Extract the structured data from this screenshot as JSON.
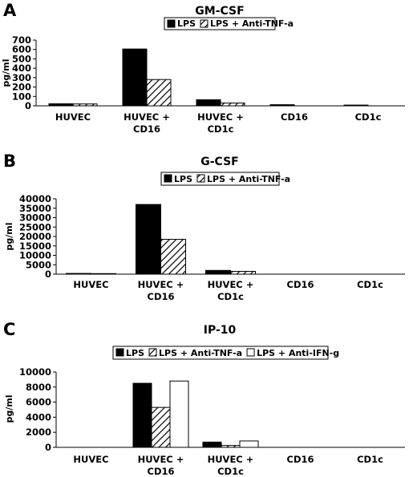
{
  "figure": {
    "panels": [
      {
        "letter": "A",
        "title": "GM-CSF"
      },
      {
        "letter": "B",
        "title": "G-CSF"
      },
      {
        "letter": "C",
        "title": "IP-10"
      }
    ]
  },
  "chart_data": [
    {
      "type": "bar",
      "title": "GM-CSF",
      "ylabel": "pg/ml",
      "xlabel": "",
      "ylim": [
        0,
        700
      ],
      "yticks": [
        "0",
        "100",
        "200",
        "300",
        "400",
        "500",
        "600",
        "700"
      ],
      "categories": [
        [
          "HUVEC"
        ],
        [
          "HUVEC +",
          "CD16"
        ],
        [
          "HUVEC +",
          "CD1c"
        ],
        [
          "CD16"
        ],
        [
          "CD1c"
        ]
      ],
      "series": [
        {
          "name": "LPS",
          "pattern": "solid",
          "values": [
            22,
            605,
            65,
            12,
            8
          ]
        },
        {
          "name": "LPS + Anti-TNF-a",
          "pattern": "hatch",
          "values": [
            20,
            280,
            30,
            0,
            0
          ]
        }
      ],
      "legend": "top",
      "grid": false
    },
    {
      "type": "bar",
      "title": "G-CSF",
      "ylabel": "pg/ml",
      "xlabel": "",
      "ylim": [
        0,
        40000
      ],
      "yticks": [
        "0",
        "5000",
        "10000",
        "15000",
        "20000",
        "25000",
        "30000",
        "35000",
        "40000"
      ],
      "categories": [
        [
          "HUVEC"
        ],
        [
          "HUVEC +",
          "CD16"
        ],
        [
          "HUVEC +",
          "CD1c"
        ],
        [
          "CD16"
        ],
        [
          "CD1c"
        ]
      ],
      "series": [
        {
          "name": "LPS",
          "pattern": "solid",
          "values": [
            400,
            37000,
            2000,
            0,
            0
          ]
        },
        {
          "name": "LPS + Anti-TNF-a",
          "pattern": "hatch",
          "values": [
            300,
            18500,
            1500,
            0,
            0
          ]
        }
      ],
      "legend": "top",
      "grid": false
    },
    {
      "type": "bar",
      "title": "IP-10",
      "ylabel": "pg/ml",
      "xlabel": "",
      "ylim": [
        0,
        10000
      ],
      "yticks": [
        "0",
        "2000",
        "4000",
        "6000",
        "8000",
        "10000"
      ],
      "categories": [
        [
          "HUVEC"
        ],
        [
          "HUVEC +",
          "CD16"
        ],
        [
          "HUVEC +",
          "CD1c"
        ],
        [
          "CD16"
        ],
        [
          "CD1c"
        ]
      ],
      "series": [
        {
          "name": "LPS",
          "pattern": "solid",
          "values": [
            0,
            8500,
            700,
            0,
            0
          ]
        },
        {
          "name": "LPS + Anti-TNF-a",
          "pattern": "hatch",
          "values": [
            0,
            5300,
            250,
            0,
            0
          ]
        },
        {
          "name": "LPS + Anti-IFN-g",
          "pattern": "open",
          "values": [
            0,
            8800,
            850,
            0,
            0
          ]
        }
      ],
      "legend": "top",
      "grid": false
    }
  ]
}
